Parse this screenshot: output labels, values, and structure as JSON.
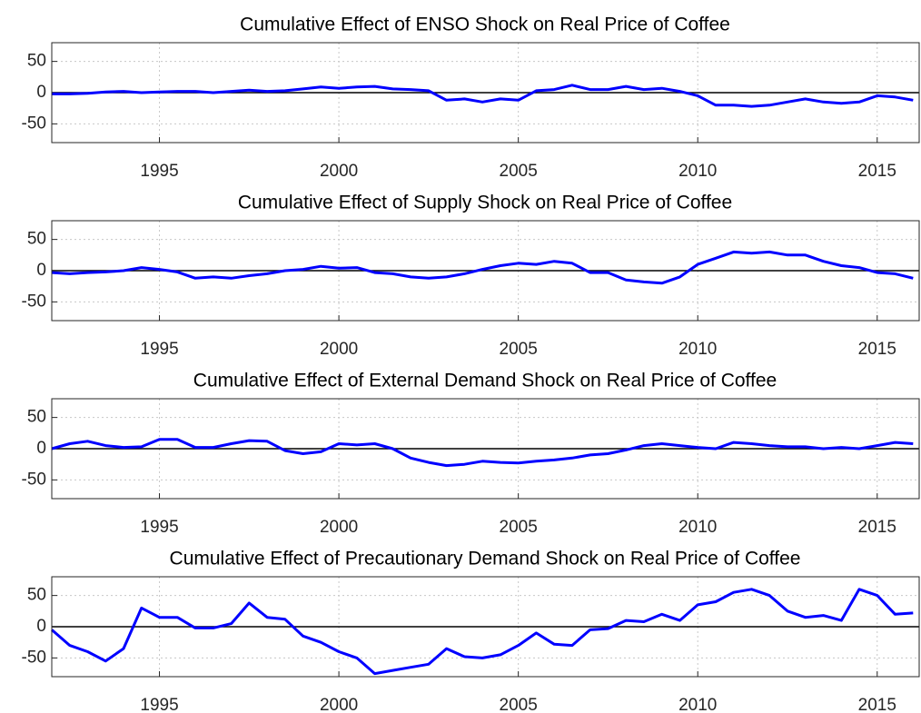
{
  "chart_data": [
    {
      "type": "line",
      "title": "Cumulative Effect of ENSO Shock on Real Price of Coffee",
      "xlim": [
        1992,
        2016.17
      ],
      "xticks": [
        1995,
        2000,
        2005,
        2010,
        2015
      ],
      "ylim": [
        -80,
        80
      ],
      "yticks": [
        -50,
        0,
        50
      ],
      "grid": true,
      "hline": 0,
      "x": [
        1992,
        1992.5,
        1993,
        1993.5,
        1994,
        1994.5,
        1995,
        1995.5,
        1996,
        1996.5,
        1997,
        1997.5,
        1998,
        1998.5,
        1999,
        1999.5,
        2000,
        2000.5,
        2001,
        2001.5,
        2002,
        2002.5,
        2003,
        2003.5,
        2004,
        2004.5,
        2005,
        2005.5,
        2006,
        2006.5,
        2007,
        2007.5,
        2008,
        2008.5,
        2009,
        2009.5,
        2010,
        2010.5,
        2011,
        2011.5,
        2012,
        2012.5,
        2013,
        2013.5,
        2014,
        2014.5,
        2015,
        2015.5,
        2016
      ],
      "series": [
        {
          "color": "#0000ff",
          "values": [
            -2,
            -2,
            -1,
            1,
            2,
            0,
            1,
            2,
            2,
            0,
            2,
            4,
            2,
            3,
            6,
            9,
            7,
            9,
            10,
            6,
            5,
            3,
            -12,
            -10,
            -15,
            -10,
            -12,
            3,
            5,
            12,
            5,
            5,
            10,
            5,
            7,
            2,
            -5,
            -20,
            -20,
            -22,
            -20,
            -15,
            -10,
            -15,
            -17,
            -15,
            -5,
            -7,
            -12
          ]
        }
      ]
    },
    {
      "type": "line",
      "title": "Cumulative Effect of Supply Shock on Real Price of Coffee",
      "xlim": [
        1992,
        2016.17
      ],
      "xticks": [
        1995,
        2000,
        2005,
        2010,
        2015
      ],
      "ylim": [
        -80,
        80
      ],
      "yticks": [
        -50,
        0,
        50
      ],
      "grid": true,
      "hline": 0,
      "x": [
        1992,
        1992.5,
        1993,
        1993.5,
        1994,
        1994.5,
        1995,
        1995.5,
        1996,
        1996.5,
        1997,
        1997.5,
        1998,
        1998.5,
        1999,
        1999.5,
        2000,
        2000.5,
        2001,
        2001.5,
        2002,
        2002.5,
        2003,
        2003.5,
        2004,
        2004.5,
        2005,
        2005.5,
        2006,
        2006.5,
        2007,
        2007.5,
        2008,
        2008.5,
        2009,
        2009.5,
        2010,
        2010.5,
        2011,
        2011.5,
        2012,
        2012.5,
        2013,
        2013.5,
        2014,
        2014.5,
        2015,
        2015.5,
        2016
      ],
      "series": [
        {
          "color": "#0000ff",
          "values": [
            -3,
            -5,
            -3,
            -2,
            0,
            5,
            2,
            -2,
            -12,
            -10,
            -12,
            -8,
            -5,
            0,
            2,
            7,
            4,
            5,
            -3,
            -5,
            -10,
            -12,
            -10,
            -5,
            2,
            8,
            12,
            10,
            15,
            12,
            -3,
            -3,
            -15,
            -18,
            -20,
            -10,
            10,
            20,
            30,
            28,
            30,
            25,
            25,
            15,
            8,
            5,
            -3,
            -5,
            -12
          ]
        }
      ]
    },
    {
      "type": "line",
      "title": "Cumulative Effect of External Demand Shock on Real Price of Coffee",
      "xlim": [
        1992,
        2016.17
      ],
      "xticks": [
        1995,
        2000,
        2005,
        2010,
        2015
      ],
      "ylim": [
        -80,
        80
      ],
      "yticks": [
        -50,
        0,
        50
      ],
      "grid": true,
      "hline": 0,
      "x": [
        1992,
        1992.5,
        1993,
        1993.5,
        1994,
        1994.5,
        1995,
        1995.5,
        1996,
        1996.5,
        1997,
        1997.5,
        1998,
        1998.5,
        1999,
        1999.5,
        2000,
        2000.5,
        2001,
        2001.5,
        2002,
        2002.5,
        2003,
        2003.5,
        2004,
        2004.5,
        2005,
        2005.5,
        2006,
        2006.5,
        2007,
        2007.5,
        2008,
        2008.5,
        2009,
        2009.5,
        2010,
        2010.5,
        2011,
        2011.5,
        2012,
        2012.5,
        2013,
        2013.5,
        2014,
        2014.5,
        2015,
        2015.5,
        2016
      ],
      "series": [
        {
          "color": "#0000ff",
          "values": [
            0,
            8,
            12,
            5,
            2,
            3,
            15,
            15,
            2,
            2,
            8,
            13,
            12,
            -3,
            -8,
            -5,
            8,
            6,
            8,
            0,
            -15,
            -22,
            -27,
            -25,
            -20,
            -22,
            -23,
            -20,
            -18,
            -15,
            -10,
            -8,
            -2,
            5,
            8,
            5,
            2,
            0,
            10,
            8,
            5,
            3,
            3,
            0,
            2,
            0,
            5,
            10,
            8
          ]
        }
      ]
    },
    {
      "type": "line",
      "title": "Cumulative Effect of Precautionary Demand Shock on Real Price of Coffee",
      "xlim": [
        1992,
        2016.17
      ],
      "xticks": [
        1995,
        2000,
        2005,
        2010,
        2015
      ],
      "ylim": [
        -80,
        80
      ],
      "yticks": [
        -50,
        0,
        50
      ],
      "grid": true,
      "hline": 0,
      "x": [
        1992,
        1992.5,
        1993,
        1993.5,
        1994,
        1994.5,
        1995,
        1995.5,
        1996,
        1996.5,
        1997,
        1997.5,
        1998,
        1998.5,
        1999,
        1999.5,
        2000,
        2000.5,
        2001,
        2001.5,
        2002,
        2002.5,
        2003,
        2003.5,
        2004,
        2004.5,
        2005,
        2005.5,
        2006,
        2006.5,
        2007,
        2007.5,
        2008,
        2008.5,
        2009,
        2009.5,
        2010,
        2010.5,
        2011,
        2011.5,
        2012,
        2012.5,
        2013,
        2013.5,
        2014,
        2014.5,
        2015,
        2015.5,
        2016
      ],
      "series": [
        {
          "color": "#0000ff",
          "values": [
            -5,
            -30,
            -40,
            -55,
            -35,
            30,
            15,
            15,
            -2,
            -2,
            5,
            38,
            15,
            12,
            -15,
            -25,
            -40,
            -50,
            -75,
            -70,
            -65,
            -60,
            -35,
            -48,
            -50,
            -45,
            -30,
            -10,
            -28,
            -30,
            -5,
            -3,
            10,
            8,
            20,
            10,
            35,
            40,
            55,
            60,
            50,
            25,
            15,
            18,
            10,
            60,
            50,
            20,
            22
          ]
        }
      ]
    }
  ]
}
